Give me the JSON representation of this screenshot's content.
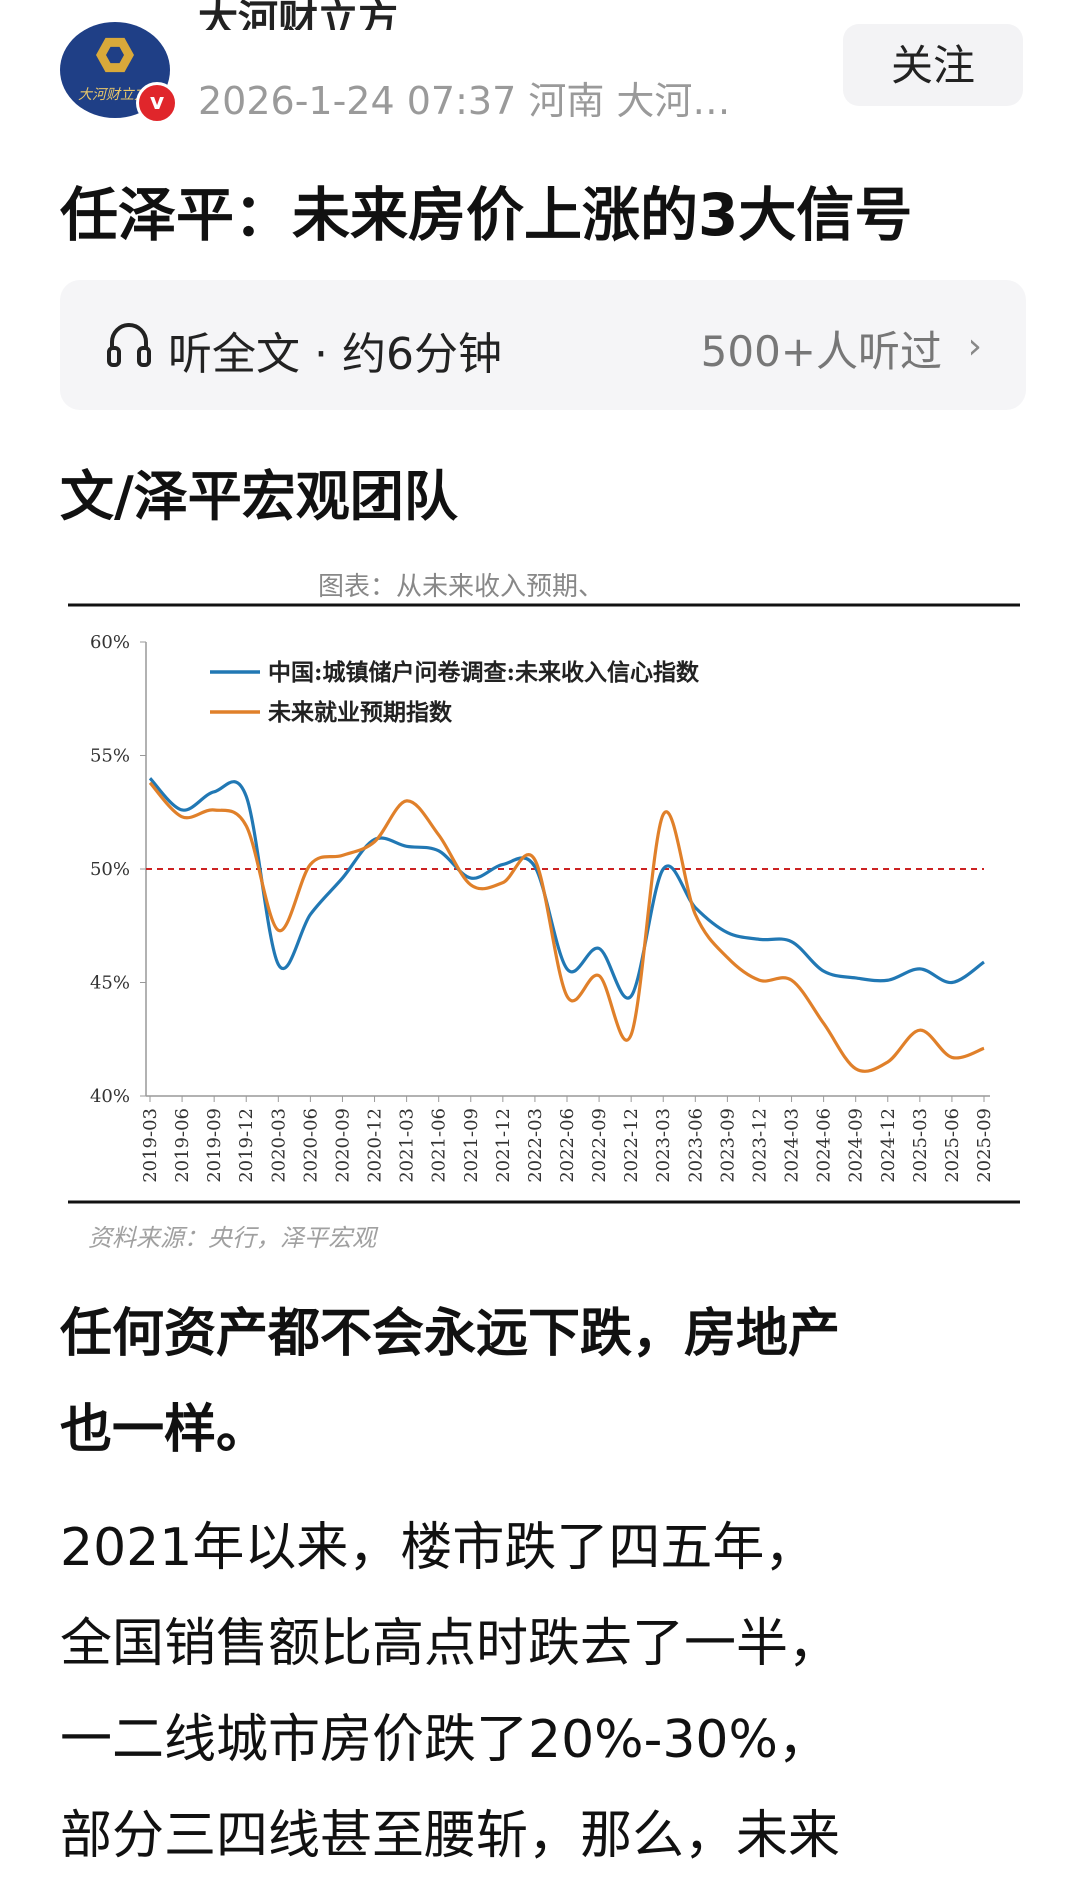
{
  "header": {
    "author_name": "大河财立方",
    "meta": "2026-1-24 07:37 河南 大河…",
    "follow_label": "关注",
    "verified_mark": "v",
    "logo_text": "大河财立方"
  },
  "article": {
    "title": "任泽平：未来房价上涨的3大信号",
    "listen": {
      "label": "听全文 · 约6分钟",
      "count": "500+人听过",
      "chevron": "›"
    },
    "byline": "文/泽平宏观团队",
    "paragraphs": [
      {
        "lines": [
          "任何资产都不会永远下跌，房地产",
          "也一样。"
        ]
      },
      {
        "lines": [
          "2021年以来，楼市跌了四五年，",
          "全国销售额比高点时跌去了一半，",
          "一二线城市房价跌了20%-30%，",
          "部分三四线甚至腰斩，那么，未来"
        ]
      }
    ]
  },
  "figure": {
    "caption": "图表：从未来收入预期、",
    "source": "资料来源：央行，泽平宏观"
  },
  "chart_data": {
    "type": "line",
    "x": [
      "2019-03",
      "2019-06",
      "2019-09",
      "2019-12",
      "2020-03",
      "2020-06",
      "2020-09",
      "2020-12",
      "2021-03",
      "2021-06",
      "2021-09",
      "2021-12",
      "2022-03",
      "2022-06",
      "2022-09",
      "2022-12",
      "2023-03",
      "2023-06",
      "2023-09",
      "2023-12",
      "2024-03",
      "2024-06",
      "2024-09",
      "2024-12",
      "2025-03",
      "2025-06",
      "2025-09"
    ],
    "series": [
      {
        "name": "中国:城镇储户问卷调查:未来收入信心指数",
        "color": "#2178b4",
        "values": [
          54.0,
          52.6,
          53.4,
          53.2,
          45.8,
          48.0,
          49.6,
          51.3,
          51.0,
          50.8,
          49.6,
          50.2,
          50.1,
          45.6,
          46.5,
          44.4,
          50.0,
          48.3,
          47.2,
          46.9,
          46.8,
          45.5,
          45.2,
          45.1,
          45.6,
          45.0,
          45.9
        ]
      },
      {
        "name": "未来就业预期指数",
        "color": "#e0802a",
        "values": [
          53.8,
          52.3,
          52.6,
          51.9,
          47.3,
          50.2,
          50.6,
          51.2,
          53.0,
          51.5,
          49.3,
          49.4,
          50.4,
          44.4,
          45.3,
          42.7,
          52.4,
          48.0,
          46.1,
          45.1,
          45.1,
          43.2,
          41.2,
          41.5,
          42.9,
          41.7,
          42.1
        ]
      }
    ],
    "ylim": [
      40,
      60
    ],
    "yticks": [
      "40%",
      "45%",
      "50%",
      "55%",
      "60%"
    ],
    "reference_line": {
      "value": 50,
      "color": "#cc2222",
      "style": "dashed"
    },
    "legend_position": "top-left",
    "grid": false
  }
}
